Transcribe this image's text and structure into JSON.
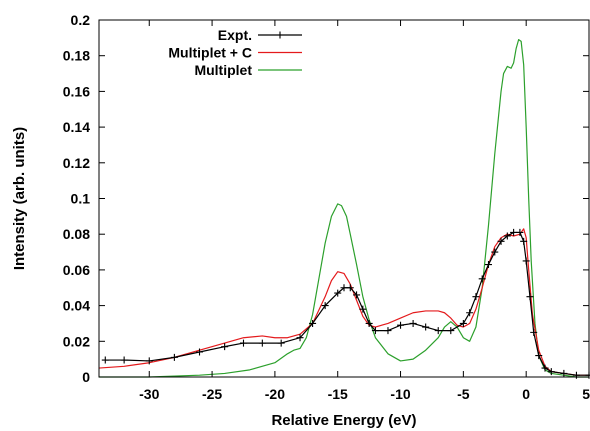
{
  "chart_data": {
    "type": "line",
    "title": "",
    "xlabel": "Relative Energy (eV)",
    "ylabel": "Intensity (arb. units)",
    "xlim": [
      -34,
      5
    ],
    "ylim": [
      0,
      0.2
    ],
    "x_ticks": [
      -30,
      -25,
      -20,
      -15,
      -10,
      -5,
      0,
      5
    ],
    "x_tick_labels": [
      "-30",
      "-25",
      "-20",
      "-15",
      "-10",
      "-5",
      "0",
      "5"
    ],
    "y_ticks": [
      0,
      0.02,
      0.04,
      0.06,
      0.08,
      0.1,
      0.12,
      0.14,
      0.16,
      0.18,
      0.2
    ],
    "y_tick_labels": [
      "0",
      "0.02",
      "0.04",
      "0.06",
      "0.08",
      "0.1",
      "0.12",
      "0.14",
      "0.16",
      "0.18",
      "0.2"
    ],
    "grid": false,
    "legend_position": "top-left",
    "series": [
      {
        "name": "Expt.",
        "color": "#000000",
        "marker": "plus",
        "x": [
          -33.5,
          -32,
          -30,
          -28,
          -26,
          -24,
          -22.5,
          -21,
          -19.5,
          -18,
          -17,
          -16,
          -15,
          -14.5,
          -14,
          -13.5,
          -13,
          -12.5,
          -12,
          -11,
          -10,
          -9,
          -8,
          -7,
          -6,
          -5,
          -4.5,
          -4,
          -3.5,
          -3,
          -2.5,
          -2,
          -1.5,
          -1,
          -0.5,
          -0.2,
          0,
          0.3,
          0.6,
          1,
          1.5,
          2,
          3,
          4,
          5
        ],
        "y": [
          0.0095,
          0.0095,
          0.009,
          0.011,
          0.014,
          0.017,
          0.019,
          0.019,
          0.019,
          0.022,
          0.03,
          0.04,
          0.047,
          0.05,
          0.05,
          0.046,
          0.038,
          0.03,
          0.026,
          0.026,
          0.029,
          0.03,
          0.028,
          0.026,
          0.026,
          0.03,
          0.036,
          0.045,
          0.055,
          0.063,
          0.07,
          0.076,
          0.079,
          0.081,
          0.081,
          0.076,
          0.065,
          0.045,
          0.025,
          0.012,
          0.005,
          0.003,
          0.002,
          0.001,
          0.001
        ]
      },
      {
        "name": "Multiplet + C",
        "color": "#e41a1c",
        "marker": "none",
        "x": [
          -34,
          -32,
          -30,
          -28,
          -26,
          -24,
          -22.5,
          -21,
          -20,
          -19,
          -18,
          -17,
          -16,
          -15.5,
          -15,
          -14.5,
          -14,
          -13.5,
          -13,
          -12.5,
          -12,
          -11,
          -10,
          -9,
          -8,
          -7,
          -6.5,
          -6,
          -5.5,
          -5,
          -4.5,
          -4,
          -3.5,
          -3,
          -2.5,
          -2,
          -1.5,
          -1,
          -0.5,
          -0.2,
          0,
          0.2,
          0.5,
          1,
          1.5,
          2,
          3,
          4,
          5
        ],
        "y": [
          0.005,
          0.006,
          0.008,
          0.011,
          0.015,
          0.019,
          0.022,
          0.023,
          0.022,
          0.022,
          0.024,
          0.03,
          0.045,
          0.054,
          0.059,
          0.058,
          0.052,
          0.043,
          0.034,
          0.029,
          0.028,
          0.03,
          0.033,
          0.036,
          0.037,
          0.037,
          0.036,
          0.033,
          0.029,
          0.028,
          0.03,
          0.038,
          0.05,
          0.063,
          0.073,
          0.078,
          0.08,
          0.079,
          0.08,
          0.083,
          0.078,
          0.06,
          0.035,
          0.015,
          0.006,
          0.003,
          0.002,
          0.001,
          0.001
        ]
      },
      {
        "name": "Multiplet",
        "color": "#2ca02c",
        "marker": "none",
        "x": [
          -34,
          -30,
          -26,
          -24,
          -22,
          -20,
          -19,
          -18.5,
          -18,
          -17.5,
          -17,
          -16.5,
          -16,
          -15.5,
          -15,
          -14.7,
          -14.3,
          -14,
          -13.5,
          -13,
          -12.5,
          -12,
          -11,
          -10,
          -9,
          -8,
          -7,
          -6.5,
          -6,
          -5.5,
          -5,
          -4.5,
          -4,
          -3.5,
          -3,
          -2.5,
          -2,
          -1.8,
          -1.5,
          -1.2,
          -1,
          -0.8,
          -0.6,
          -0.4,
          -0.2,
          0,
          0.2,
          0.4,
          0.7,
          1,
          1.5,
          2,
          3,
          4,
          5
        ],
        "y": [
          0,
          0,
          0.001,
          0.002,
          0.004,
          0.008,
          0.013,
          0.015,
          0.016,
          0.022,
          0.035,
          0.055,
          0.075,
          0.09,
          0.097,
          0.096,
          0.09,
          0.08,
          0.063,
          0.045,
          0.032,
          0.022,
          0.013,
          0.009,
          0.01,
          0.015,
          0.022,
          0.028,
          0.031,
          0.028,
          0.022,
          0.02,
          0.028,
          0.05,
          0.085,
          0.125,
          0.16,
          0.17,
          0.174,
          0.173,
          0.176,
          0.184,
          0.189,
          0.188,
          0.175,
          0.14,
          0.1,
          0.065,
          0.03,
          0.012,
          0.004,
          0.002,
          0.001,
          0,
          0
        ]
      }
    ]
  }
}
